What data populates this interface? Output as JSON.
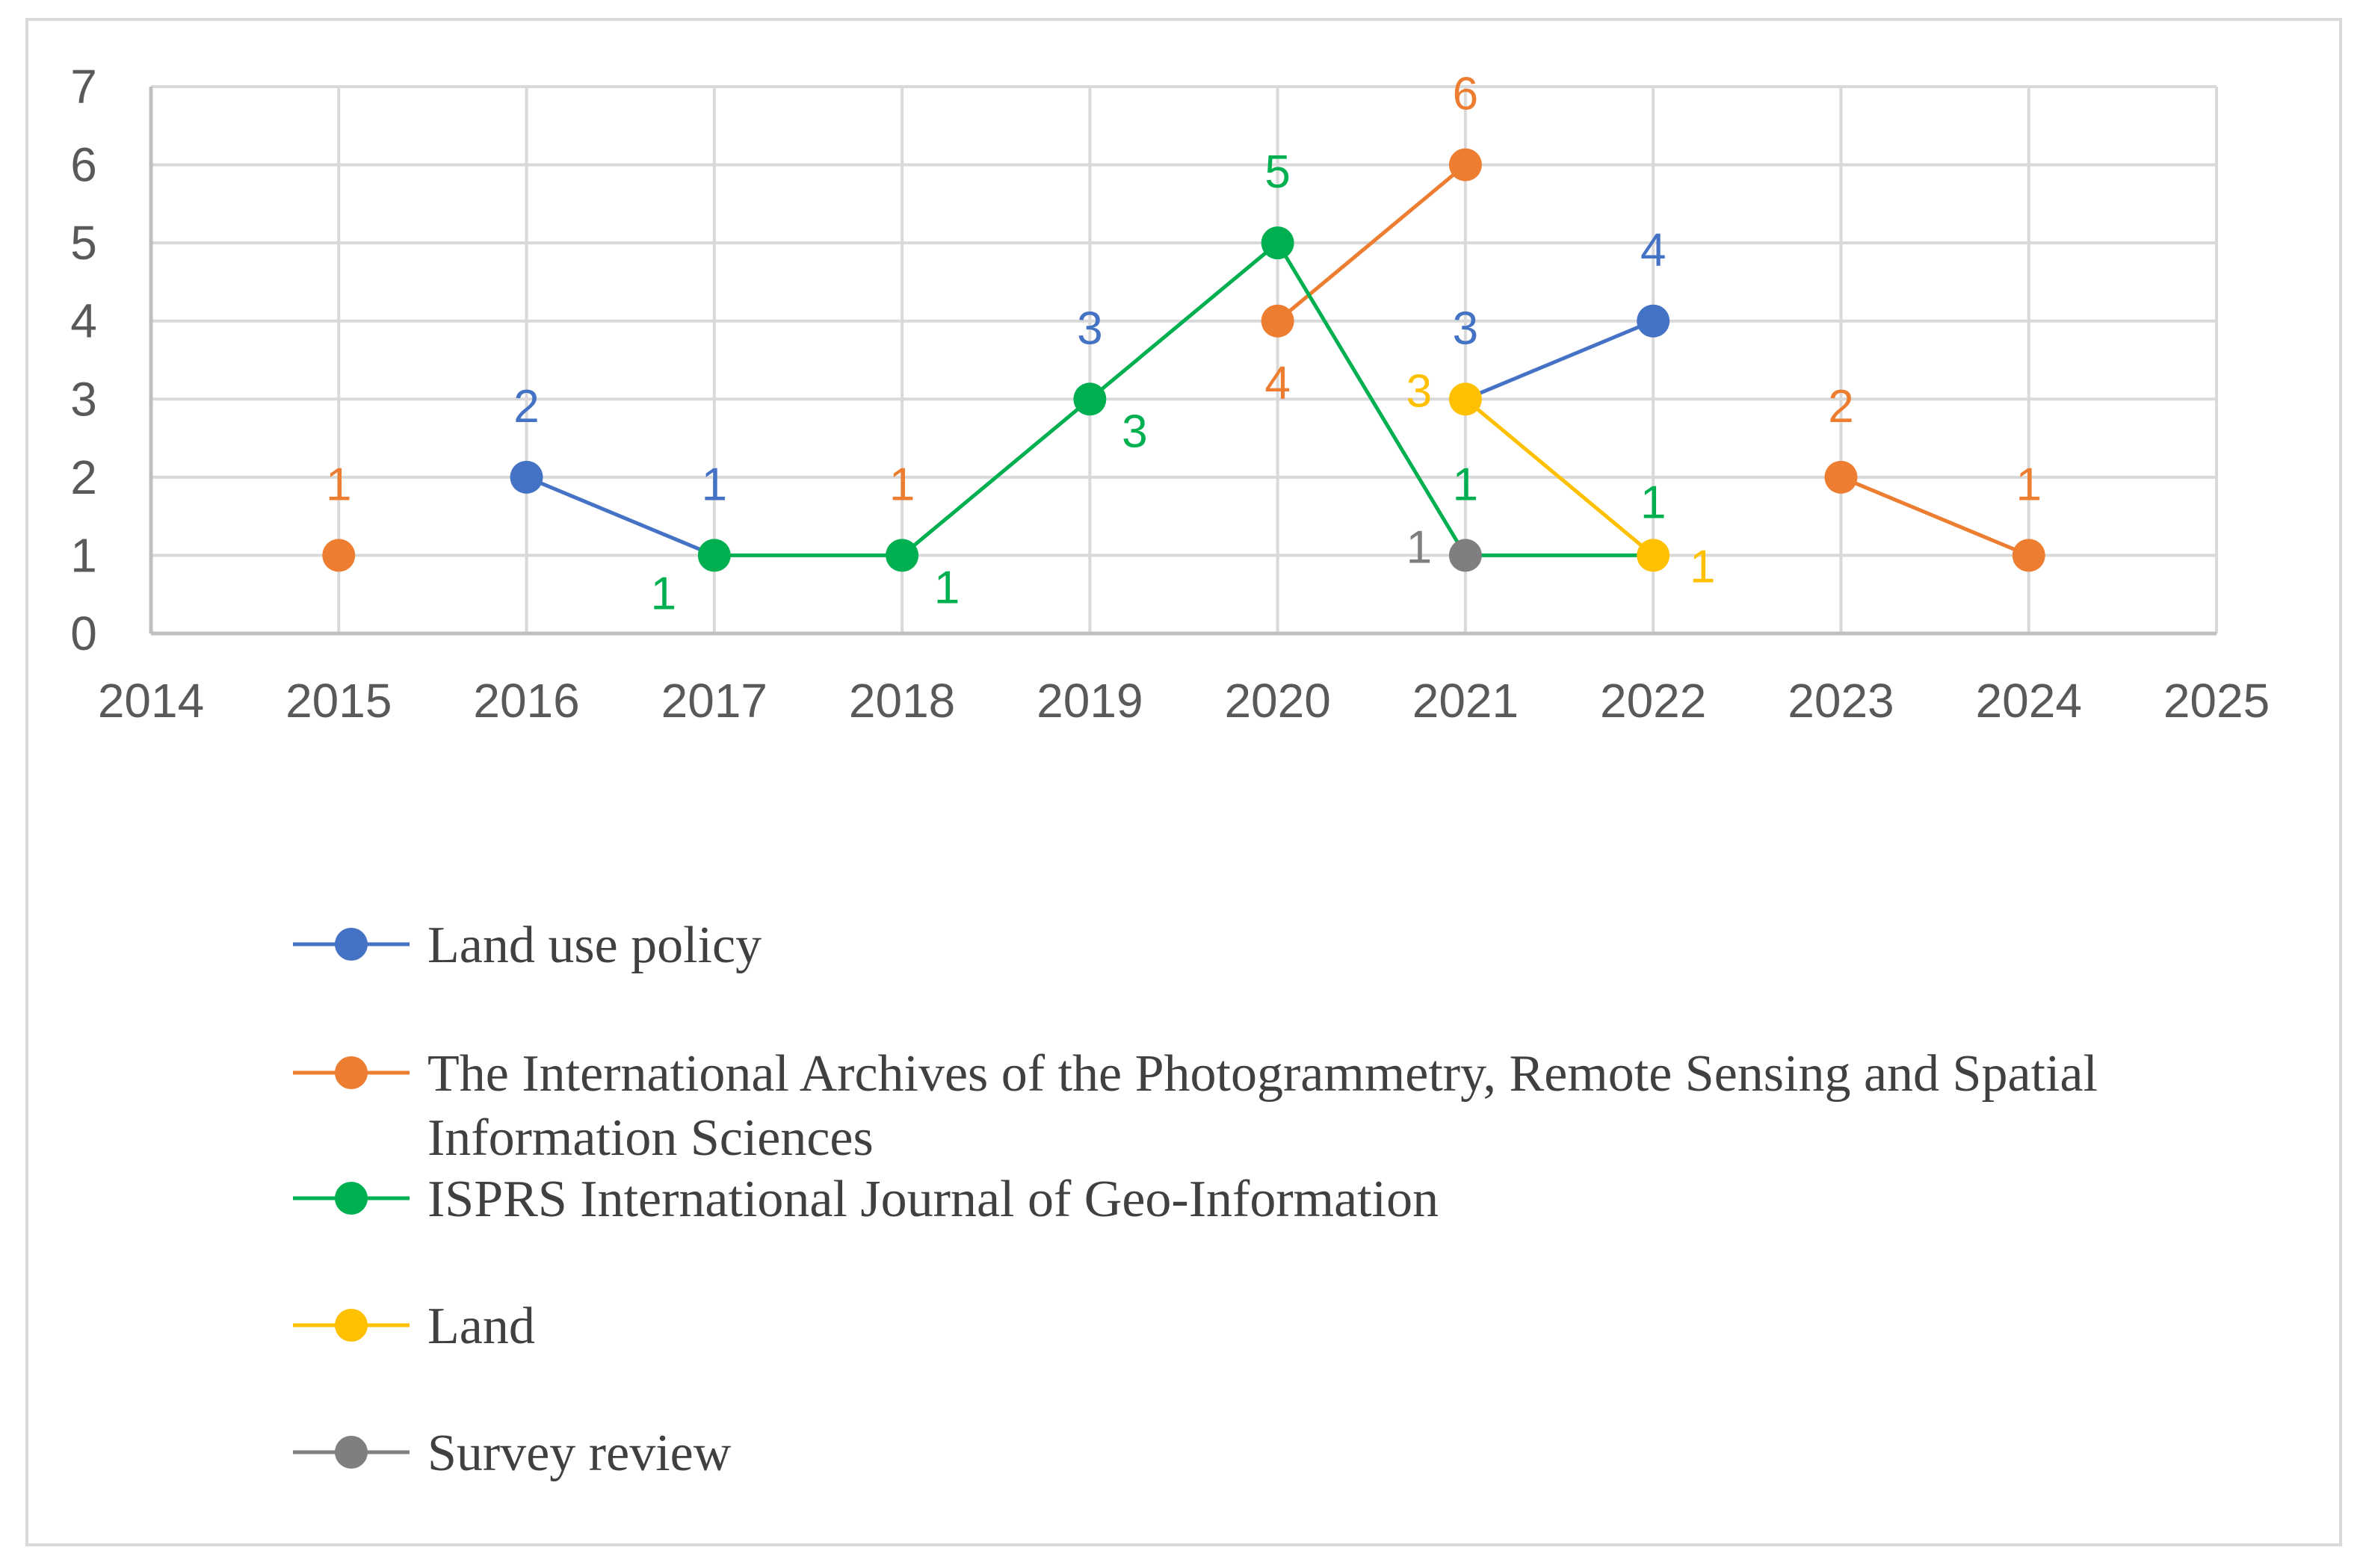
{
  "chart_data": {
    "type": "line",
    "title": "",
    "xlabel": "",
    "ylabel": "",
    "xlim": [
      2014,
      2025
    ],
    "ylim": [
      0,
      7
    ],
    "x_ticks": [
      "2014",
      "2015",
      "2016",
      "2017",
      "2018",
      "2019",
      "2020",
      "2021",
      "2022",
      "2023",
      "2024",
      "2025"
    ],
    "y_ticks": [
      "0",
      "1",
      "2",
      "3",
      "4",
      "5",
      "6",
      "7"
    ],
    "grid": true,
    "legend_position": "bottom",
    "series": [
      {
        "name": "Land use policy",
        "color": "#4472C4",
        "segments": [
          [
            [
              2016,
              2
            ],
            [
              2017,
              1
            ]
          ],
          [
            [
              2021,
              3
            ],
            [
              2022,
              4
            ]
          ]
        ],
        "markers": [
          [
            2016,
            2
          ],
          [
            2022,
            4
          ]
        ],
        "labels": [
          {
            "x": 2016,
            "y": 2,
            "text": "2",
            "pos": "above"
          },
          {
            "x": 2017,
            "y": 1,
            "text": "1",
            "pos": "above"
          },
          {
            "x": 2019,
            "y": 3,
            "text": "3",
            "pos": "above"
          },
          {
            "x": 2021,
            "y": 3,
            "text": "3",
            "pos": "above"
          },
          {
            "x": 2022,
            "y": 4,
            "text": "4",
            "pos": "above"
          }
        ]
      },
      {
        "name": "The International Archives of the Photogrammetry, Remote Sensing and Spatial Information Sciences",
        "legend_lines": [
          "The International Archives of the Photogrammetry, Remote Sensing and Spatial",
          "Information Sciences"
        ],
        "color": "#ED7D31",
        "segments": [
          [
            [
              2020,
              4
            ],
            [
              2021,
              6
            ]
          ],
          [
            [
              2023,
              2
            ],
            [
              2024,
              1
            ]
          ]
        ],
        "markers": [
          [
            2015,
            1
          ],
          [
            2020,
            4
          ],
          [
            2021,
            6
          ],
          [
            2023,
            2
          ],
          [
            2024,
            1
          ]
        ],
        "labels": [
          {
            "x": 2015,
            "y": 1,
            "text": "1",
            "pos": "above"
          },
          {
            "x": 2018,
            "y": 1,
            "text": "1",
            "pos": "above"
          },
          {
            "x": 2020,
            "y": 4,
            "text": "4",
            "pos": "below"
          },
          {
            "x": 2021,
            "y": 6,
            "text": "6",
            "pos": "above"
          },
          {
            "x": 2023,
            "y": 2,
            "text": "2",
            "pos": "above"
          },
          {
            "x": 2024,
            "y": 1,
            "text": "1",
            "pos": "above"
          }
        ]
      },
      {
        "name": "ISPRS International Journal of Geo-Information",
        "color": "#00B050",
        "segments": [
          [
            [
              2017,
              1
            ],
            [
              2018,
              1
            ],
            [
              2019,
              3
            ],
            [
              2020,
              5
            ],
            [
              2021,
              1
            ],
            [
              2022,
              1
            ]
          ]
        ],
        "markers": [
          [
            2017,
            1
          ],
          [
            2018,
            1
          ],
          [
            2019,
            3
          ],
          [
            2020,
            5
          ]
        ],
        "labels": [
          {
            "x": 2017,
            "y": 1,
            "text": "1",
            "pos": "below-left"
          },
          {
            "x": 2018,
            "y": 1,
            "text": "1",
            "pos": "below-right"
          },
          {
            "x": 2019,
            "y": 3,
            "text": "3",
            "pos": "below-right"
          },
          {
            "x": 2020,
            "y": 5,
            "text": "5",
            "pos": "above"
          },
          {
            "x": 2021,
            "y": 1,
            "text": "1",
            "pos": "above"
          },
          {
            "x": 2022,
            "y": 1,
            "text": "1",
            "pos": "above-high"
          }
        ]
      },
      {
        "name": "Land",
        "color": "#FFC000",
        "segments": [
          [
            [
              2021,
              3
            ],
            [
              2022,
              1
            ]
          ]
        ],
        "markers": [
          [
            2021,
            3
          ],
          [
            2022,
            1
          ]
        ],
        "labels": [
          {
            "x": 2021,
            "y": 3,
            "text": "3",
            "pos": "left"
          },
          {
            "x": 2022,
            "y": 1,
            "text": "1",
            "pos": "right"
          }
        ]
      },
      {
        "name": "Survey review",
        "color": "#7F7F7F",
        "segments": [],
        "markers": [
          [
            2021,
            1
          ]
        ],
        "labels": [
          {
            "x": 2021,
            "y": 1,
            "text": "1",
            "pos": "left"
          }
        ]
      }
    ]
  }
}
